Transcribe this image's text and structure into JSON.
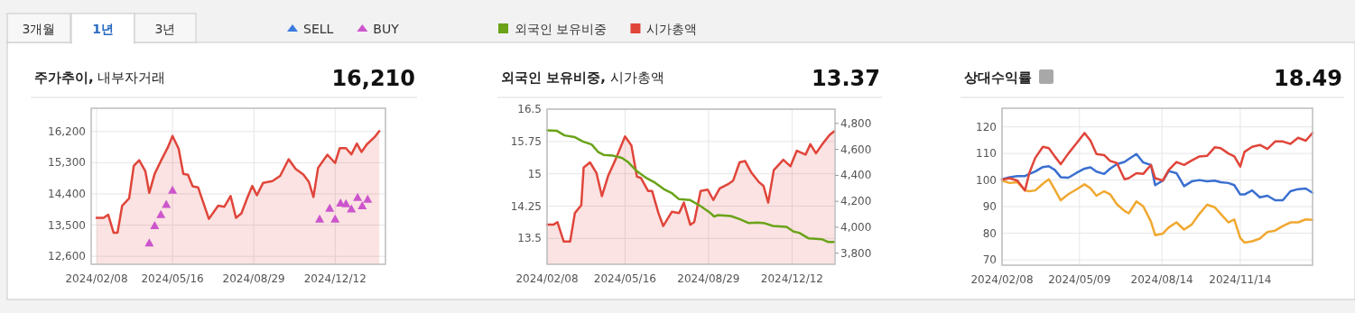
{
  "chart_data": [
    {
      "type": "other",
      "annotations": [
        "3개월",
        "1년",
        "3년"
      ]
    },
    {
      "type": "area",
      "title": "주가추이, 내부자거래",
      "subtitle": "16,210",
      "grid": true,
      "legend": "top",
      "xlim": [
        "2024-02-01",
        "2025-02-15"
      ],
      "ylim": [
        12370,
        16870
      ],
      "xticks": [
        {
          "value": "2024-02-08",
          "label": "2024/02/08"
        },
        {
          "value": "2024-05-16",
          "label": "2024/05/16"
        },
        {
          "value": "2024-08-29",
          "label": "2024/08/29"
        },
        {
          "value": "2024-12-12",
          "label": "2024/12/12"
        }
      ],
      "yticks": [
        {
          "value": 12600,
          "label": "12,600"
        },
        {
          "value": 13500,
          "label": "13,500"
        },
        {
          "value": 14400,
          "label": "14,400"
        },
        {
          "value": 15300,
          "label": "15,300"
        },
        {
          "value": 16200,
          "label": "16,200"
        }
      ],
      "series": [
        {
          "name": "SELL",
          "type": "scatter",
          "marker": "triangle",
          "color": "#3a7be0"
        },
        {
          "name": "BUY",
          "type": "scatter",
          "marker": "triangle",
          "color": "#cc55cc",
          "x": [
            "2024-04-16",
            "2024-04-23",
            "2024-05-01",
            "2024-05-08",
            "2024-05-16",
            "2024-11-22",
            "2024-12-05",
            "2024-12-12",
            "2024-12-19",
            "2024-12-26",
            "2025-01-02",
            "2025-01-10",
            "2025-01-16",
            "2025-01-23"
          ],
          "values": [
            12990,
            13490,
            13810,
            14100,
            14510,
            13680,
            13990,
            13680,
            14140,
            14120,
            13970,
            14300,
            14060,
            14250
          ]
        },
        {
          "type": "area",
          "color": "#e0453a",
          "x": [
            "2024-02-08",
            "2024-02-17",
            "2024-02-23",
            "2024-03-01",
            "2024-03-06",
            "2024-03-12",
            "2024-03-21",
            "2024-03-27",
            "2024-04-03",
            "2024-04-11",
            "2024-04-16",
            "2024-04-23",
            "2024-05-01",
            "2024-05-10",
            "2024-05-16",
            "2024-05-24",
            "2024-05-30",
            "2024-06-05",
            "2024-06-11",
            "2024-06-18",
            "2024-07-02",
            "2024-07-14",
            "2024-07-22",
            "2024-07-30",
            "2024-08-06",
            "2024-08-13",
            "2024-08-21",
            "2024-08-27",
            "2024-09-02",
            "2024-09-10",
            "2024-09-22",
            "2024-10-02",
            "2024-10-13",
            "2024-10-22",
            "2024-11-01",
            "2024-11-08",
            "2024-11-14",
            "2024-11-20",
            "2024-12-02",
            "2024-12-12",
            "2024-12-18",
            "2024-12-26",
            "2025-01-02",
            "2025-01-09",
            "2025-01-15",
            "2025-01-22",
            "2025-02-01",
            "2025-02-07"
          ],
          "values": [
            13710,
            13710,
            13800,
            13280,
            13280,
            14060,
            14270,
            15210,
            15370,
            15050,
            14430,
            14980,
            15350,
            15740,
            16070,
            15700,
            14980,
            14950,
            14620,
            14590,
            13680,
            14060,
            14030,
            14340,
            13710,
            13840,
            14310,
            14630,
            14360,
            14720,
            14770,
            14920,
            15400,
            15120,
            14960,
            14750,
            14310,
            15150,
            15530,
            15290,
            15720,
            15720,
            15540,
            15850,
            15610,
            15830,
            16040,
            16210
          ]
        }
      ]
    },
    {
      "type": "line",
      "title": "외국인 보유비중, 시가총액",
      "subtitle": "13.37",
      "grid": true,
      "legend": "top",
      "xlim": [
        "2024-02-08",
        "2025-02-04"
      ],
      "ylim": [
        12.9,
        16.5
      ],
      "y2lim": [
        3715,
        4910
      ],
      "xticks": [
        {
          "value": "2024-02-08",
          "label": "2024/02/08"
        },
        {
          "value": "2024-05-16",
          "label": "2024/05/16"
        },
        {
          "value": "2024-08-29",
          "label": "2024/08/29"
        },
        {
          "value": "2024-12-12",
          "label": "2024/12/12"
        }
      ],
      "yticks": [
        13.5,
        14.25,
        15,
        15.75,
        16.5
      ],
      "y2ticks": [
        {
          "value": 3800,
          "label": "3,800"
        },
        {
          "value": 4000,
          "label": "4,000"
        },
        {
          "value": 4200,
          "label": "4,200"
        },
        {
          "value": 4400,
          "label": "4,400"
        },
        {
          "value": 4600,
          "label": "4,600"
        },
        {
          "value": 4800,
          "label": "4,800"
        }
      ],
      "series": [
        {
          "name": "외국인 보유비중",
          "type": "line",
          "color": "#6aa318",
          "x": [
            "2024-02-08",
            "2024-02-20",
            "2024-03-01",
            "2024-03-14",
            "2024-03-24",
            "2024-04-04",
            "2024-04-12",
            "2024-04-19",
            "2024-05-01",
            "2024-05-12",
            "2024-05-20",
            "2024-05-31",
            "2024-06-12",
            "2024-06-23",
            "2024-07-04",
            "2024-07-14",
            "2024-07-23",
            "2024-08-06",
            "2024-08-19",
            "2024-08-30",
            "2024-09-05",
            "2024-09-10",
            "2024-09-26",
            "2024-10-07",
            "2024-10-18",
            "2024-10-30",
            "2024-11-08",
            "2024-11-18",
            "2024-12-05",
            "2024-12-14",
            "2024-12-21",
            "2025-01-02",
            "2025-01-19",
            "2025-01-26",
            "2025-02-03"
          ],
          "values": [
            16.01,
            16.0,
            15.89,
            15.85,
            15.75,
            15.68,
            15.51,
            15.44,
            15.42,
            15.37,
            15.27,
            15.06,
            14.9,
            14.79,
            14.64,
            14.55,
            14.41,
            14.39,
            14.25,
            14.11,
            14.01,
            14.04,
            14.02,
            13.95,
            13.86,
            13.87,
            13.85,
            13.79,
            13.77,
            13.66,
            13.63,
            13.5,
            13.48,
            13.42,
            13.42
          ]
        },
        {
          "name": "시가총액",
          "type": "area",
          "axis": "y2",
          "color": "#e0453a",
          "x": [
            "2024-02-08",
            "2024-02-16",
            "2024-02-21",
            "2024-02-29",
            "2024-03-08",
            "2024-03-14",
            "2024-03-22",
            "2024-03-25",
            "2024-04-02",
            "2024-04-10",
            "2024-04-17",
            "2024-04-25",
            "2024-05-04",
            "2024-05-16",
            "2024-05-24",
            "2024-05-31",
            "2024-06-05",
            "2024-06-14",
            "2024-06-19",
            "2024-06-27",
            "2024-07-03",
            "2024-07-14",
            "2024-07-23",
            "2024-07-29",
            "2024-08-06",
            "2024-08-11",
            "2024-08-19",
            "2024-08-28",
            "2024-09-04",
            "2024-09-12",
            "2024-09-22",
            "2024-09-29",
            "2024-10-07",
            "2024-10-14",
            "2024-10-22",
            "2024-10-31",
            "2024-11-06",
            "2024-11-12",
            "2024-11-19",
            "2024-12-01",
            "2024-12-10",
            "2024-12-18",
            "2024-12-29",
            "2025-01-04",
            "2025-01-11",
            "2025-01-19",
            "2025-01-28",
            "2025-02-03"
          ],
          "values": [
            4020,
            4020,
            4040,
            3890,
            3890,
            4110,
            4170,
            4460,
            4500,
            4420,
            4240,
            4400,
            4520,
            4700,
            4630,
            4390,
            4380,
            4280,
            4280,
            4110,
            4010,
            4120,
            4110,
            4190,
            4020,
            4040,
            4280,
            4290,
            4210,
            4300,
            4330,
            4360,
            4500,
            4510,
            4420,
            4350,
            4320,
            4190,
            4440,
            4520,
            4470,
            4590,
            4560,
            4640,
            4570,
            4640,
            4710,
            4740
          ]
        }
      ]
    },
    {
      "type": "line",
      "title": "상대수익률",
      "subtitle": "18.49",
      "grid": true,
      "xlim": [
        "2024-02-08",
        "2025-02-07"
      ],
      "ylim": [
        68,
        127
      ],
      "xticks": [
        {
          "value": "2024-02-08",
          "label": "2024/02/08"
        },
        {
          "value": "2024-05-09",
          "label": "2024/05/09"
        },
        {
          "value": "2024-08-14",
          "label": "2024/08/14"
        },
        {
          "value": "2024-11-14",
          "label": "2024/11/14"
        }
      ],
      "yticks": [
        70,
        80,
        90,
        100,
        110,
        120
      ],
      "x": [
        "2024-02-08",
        "2024-02-17",
        "2024-02-26",
        "2024-03-06",
        "2024-03-11",
        "2024-03-18",
        "2024-03-27",
        "2024-04-03",
        "2024-04-10",
        "2024-04-17",
        "2024-04-26",
        "2024-05-05",
        "2024-05-15",
        "2024-05-22",
        "2024-05-29",
        "2024-06-07",
        "2024-06-14",
        "2024-06-22",
        "2024-07-01",
        "2024-07-06",
        "2024-07-15",
        "2024-07-23",
        "2024-08-01",
        "2024-08-06",
        "2024-08-15",
        "2024-08-22",
        "2024-08-31",
        "2024-09-09",
        "2024-09-18",
        "2024-09-27",
        "2024-10-06",
        "2024-10-15",
        "2024-10-22",
        "2024-10-31",
        "2024-11-07",
        "2024-11-14",
        "2024-11-19",
        "2024-11-28",
        "2024-12-07",
        "2024-12-16",
        "2024-12-25",
        "2025-01-03",
        "2025-01-12",
        "2025-01-21",
        "2025-01-30",
        "2025-02-07"
      ],
      "series": [
        {
          "color": "#3a6fd0",
          "values": [
            100.3,
            101.1,
            101.5,
            101.5,
            102.3,
            103.2,
            104.9,
            105.2,
            103.8,
            101.1,
            100.9,
            102.6,
            104.3,
            104.8,
            103.2,
            102.3,
            104.3,
            106.0,
            106.8,
            107.9,
            109.8,
            106.6,
            105.7,
            98.1,
            99.8,
            103.4,
            102.6,
            97.7,
            99.5,
            100.0,
            99.5,
            99.8,
            99.2,
            98.9,
            98.1,
            94.6,
            94.6,
            96.1,
            93.5,
            94.1,
            92.4,
            92.4,
            95.8,
            96.6,
            96.8,
            95.2
          ]
        },
        {
          "color": "#f0a830",
          "values": [
            99.8,
            98.9,
            99.2,
            96.1,
            95.8,
            96.1,
            98.6,
            100.3,
            96.4,
            92.4,
            94.7,
            96.4,
            98.4,
            96.9,
            94.1,
            95.8,
            94.7,
            90.9,
            88.4,
            87.5,
            92.0,
            90.1,
            84.4,
            79.3,
            79.9,
            82.2,
            84.1,
            81.4,
            83.3,
            87.3,
            90.7,
            89.8,
            87.3,
            84.1,
            85.2,
            78.2,
            76.5,
            77.0,
            78.0,
            80.5,
            81.0,
            82.7,
            84.1,
            84.1,
            85.2,
            85.0
          ]
        },
        {
          "color": "#e0453a",
          "values": [
            100.1,
            100.7,
            99.8,
            96.1,
            102.6,
            108.3,
            112.5,
            112.0,
            108.9,
            106.0,
            110.0,
            113.6,
            117.7,
            114.8,
            109.8,
            109.4,
            107.2,
            106.4,
            100.3,
            100.7,
            102.6,
            102.3,
            105.7,
            100.7,
            99.8,
            103.8,
            106.8,
            105.7,
            107.4,
            108.9,
            109.1,
            112.3,
            112.0,
            110.0,
            108.9,
            105.1,
            110.6,
            112.5,
            113.2,
            111.7,
            114.5,
            114.5,
            113.6,
            115.9,
            114.8,
            117.7
          ]
        }
      ]
    }
  ]
}
